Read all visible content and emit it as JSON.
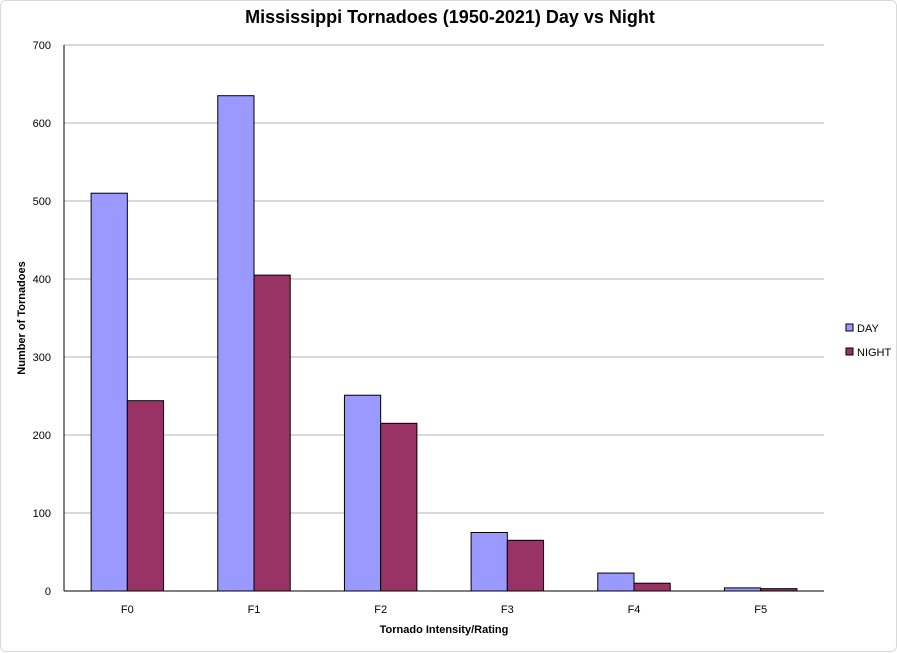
{
  "chart_data": {
    "type": "bar",
    "title": "Mississippi Tornadoes (1950-2021) Day vs Night",
    "xlabel": "Tornado Intensity/Rating",
    "ylabel": "Number of Tornadoes",
    "categories": [
      "F0",
      "F1",
      "F2",
      "F3",
      "F4",
      "F5"
    ],
    "series": [
      {
        "name": "DAY",
        "color": "#9999ff",
        "values": [
          510,
          635,
          251,
          75,
          23,
          4
        ]
      },
      {
        "name": "NIGHT",
        "color": "#993366",
        "values": [
          244,
          405,
          215,
          65,
          10,
          3
        ]
      }
    ],
    "ylim": [
      0,
      700
    ],
    "yticks": [
      0,
      100,
      200,
      300,
      400,
      500,
      600,
      700
    ],
    "grid": true,
    "legend_position": "right"
  }
}
